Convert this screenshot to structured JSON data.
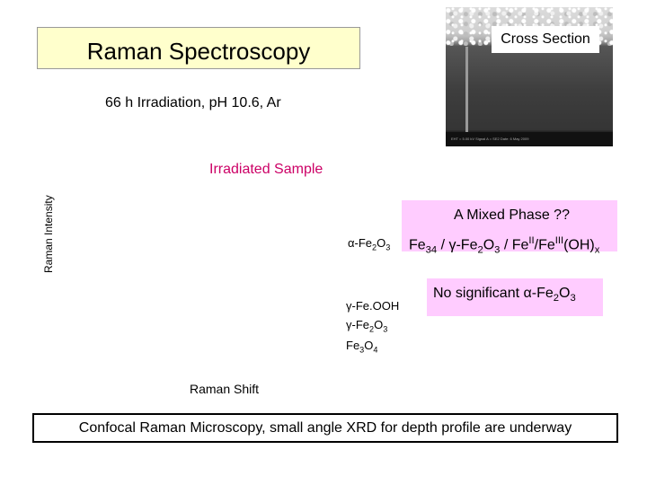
{
  "title": "Raman Spectroscopy",
  "subtitle": "66 h Irradiation, pH 10.6, Ar",
  "cross_section": {
    "label": "Cross Section",
    "meta_text": "EHT = 5.00 kV   Signal A = SE2   Date: 6 May 2009"
  },
  "y_axis_label": "Raman Intensity",
  "x_axis_label": "Raman Shift",
  "sample_label": "Irradiated Sample",
  "peaks": {
    "alpha_prefix": "α-Fe",
    "feooh": "γ-Fe.OOH",
    "gamma_prefix": "γ-Fe",
    "fe3o4_prefix": "Fe"
  },
  "mixed_phase": {
    "title": "A Mixed Phase ??",
    "p1": "Fe",
    "p2": " / γ-Fe",
    "p3": " / Fe",
    "p4": "/Fe",
    "p5": "(OH)"
  },
  "no_significant": {
    "prefix": "No significant α-Fe"
  },
  "subscripts": {
    "s2": "2",
    "s3": "3",
    "s4": "4",
    "x": "x"
  },
  "superscripts": {
    "II": "II",
    "III": "III"
  },
  "footer": "Confocal Raman Microscopy, small angle XRD for depth profile are underway"
}
